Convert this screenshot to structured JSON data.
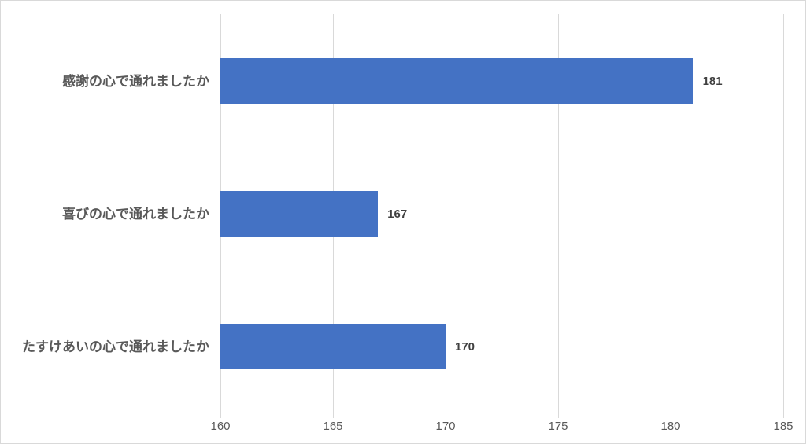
{
  "chart_data": {
    "type": "bar",
    "orientation": "horizontal",
    "title": "",
    "xlabel": "",
    "ylabel": "",
    "categories": [
      "感謝の心で通れましたか",
      "喜びの心で通れましたか",
      "たすけあいの心で通れましたか"
    ],
    "values": [
      181,
      167,
      170
    ],
    "data_labels": [
      "181",
      "167",
      "170"
    ],
    "xlim": [
      160,
      185
    ],
    "xticks": [
      "160",
      "165",
      "170",
      "175",
      "180",
      "185"
    ],
    "grid": true,
    "legend": false
  },
  "colors": {
    "bar": "#4472c4",
    "gridline": "#d9d9d9",
    "tick_text": "#595959",
    "category_text": "#595959",
    "data_label_text": "#404040",
    "chart_border": "#d9d9d9",
    "background": "#ffffff"
  }
}
